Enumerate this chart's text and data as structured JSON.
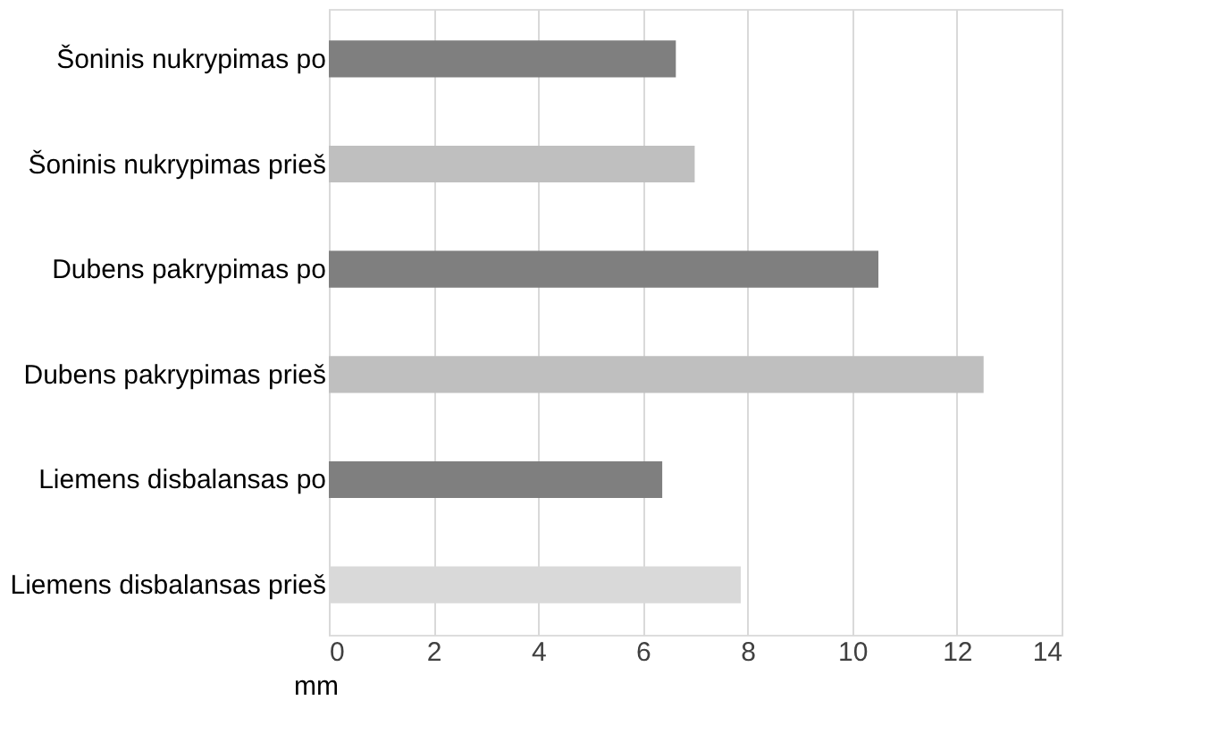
{
  "chart_data": {
    "type": "bar",
    "orientation": "horizontal",
    "xlabel": "mm",
    "categories": [
      "Šoninis nukrypimas po",
      "Šoninis nukrypimas prieš",
      "Dubens pakrypimas po",
      "Dubens pakrypimas prieš",
      "Liemens disbalansas po",
      "Liemens disbalansas prieš"
    ],
    "values": [
      6.63,
      6.99,
      10.5,
      12.51,
      6.37,
      7.87
    ],
    "colors": [
      "#7f7f7f",
      "#bfbfbf",
      "#7f7f7f",
      "#bfbfbf",
      "#7f7f7f",
      "#d9d9d9"
    ],
    "xlim": [
      0,
      14
    ],
    "xticks": [
      0,
      2,
      4,
      6,
      8,
      10,
      12,
      14
    ],
    "grid": "x"
  }
}
